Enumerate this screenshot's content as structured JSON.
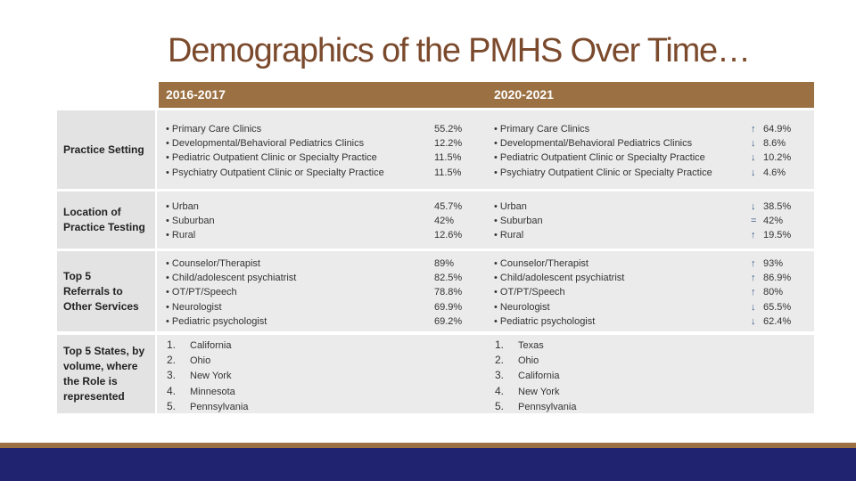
{
  "title": "Demographics of the PMHS Over Time…",
  "headers": {
    "col1": "2016-2017",
    "col2": "2020-2021"
  },
  "rows": {
    "practice": {
      "label": "Practice Setting",
      "items_2016": [
        "Primary Care Clinics",
        "Developmental/Behavioral Pediatrics Clinics",
        "Pediatric Outpatient Clinic or Specialty Practice",
        "Psychiatry Outpatient Clinic or Specialty Practice"
      ],
      "values_2016": [
        "55.2%",
        "12.2%",
        "11.5%",
        "11.5%"
      ],
      "items_2020": [
        "Primary Care Clinics",
        "Developmental/Behavioral Pediatrics Clinics",
        "Pediatric Outpatient Clinic or Specialty Practice",
        "Psychiatry Outpatient Clinic or Specialty Practice"
      ],
      "trend_2020": [
        "↑",
        "↓",
        "↓",
        "↓"
      ],
      "values_2020": [
        "64.9%",
        "8.6%",
        "10.2%",
        "4.6%"
      ]
    },
    "location": {
      "label": "Location of Practice Testing",
      "items_2016": [
        "Urban",
        "Suburban",
        "Rural"
      ],
      "values_2016": [
        "45.7%",
        "42%",
        "12.6%"
      ],
      "items_2020": [
        "Urban",
        "Suburban",
        "Rural"
      ],
      "trend_2020": [
        "↓",
        "=",
        "↑"
      ],
      "values_2020": [
        "38.5%",
        "42%",
        "19.5%"
      ]
    },
    "referrals": {
      "label": "Top 5 Referrals to Other Services",
      "items_2016": [
        "Counselor/Therapist",
        "Child/adolescent psychiatrist",
        "OT/PT/Speech",
        "Neurologist",
        "Pediatric psychologist"
      ],
      "values_2016": [
        "89%",
        "82.5%",
        "78.8%",
        "69.9%",
        "69.2%"
      ],
      "items_2020": [
        "Counselor/Therapist",
        "Child/adolescent psychiatrist",
        "OT/PT/Speech",
        "Neurologist",
        "Pediatric psychologist"
      ],
      "trend_2020": [
        "↑",
        "↑",
        "↑",
        "↓",
        "↓"
      ],
      "values_2020": [
        "93%",
        "86.9%",
        "80%",
        "65.5%",
        "62.4%"
      ]
    },
    "states": {
      "label": "Top 5 States, by volume, where the Role is represented",
      "numbers": [
        "1.",
        "2.",
        "3.",
        "4.",
        "5."
      ],
      "items_2016": [
        "California",
        "Ohio",
        "New York",
        "Minnesota",
        "Pennsylvania"
      ],
      "items_2020": [
        "Texas",
        "Ohio",
        "California",
        "New York",
        "Pennsylvania"
      ]
    }
  },
  "colors": {
    "header": "#9b7143",
    "title": "#7b4a2d",
    "footer": "#1f2370",
    "label_bg": "#e3e3e3",
    "row_bg": "#ebebeb"
  }
}
